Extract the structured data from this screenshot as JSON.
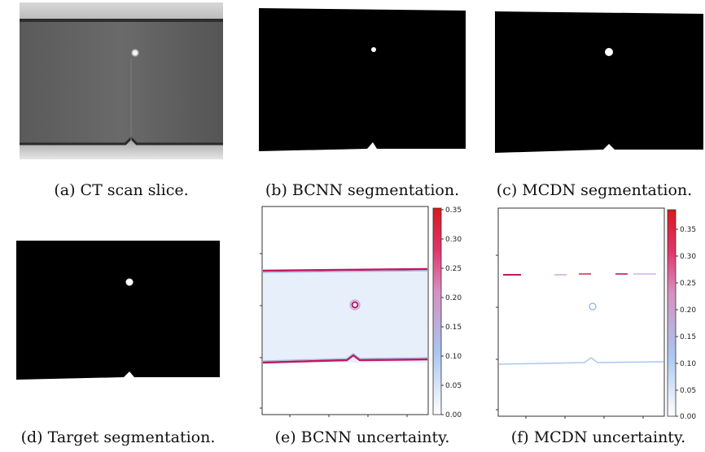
{
  "figure": {
    "panels": [
      {
        "id": "a",
        "caption": "(a) CT scan slice."
      },
      {
        "id": "b",
        "caption": "(b) BCNN segmentation."
      },
      {
        "id": "c",
        "caption": "(c) MCDN segmentation."
      },
      {
        "id": "d",
        "caption": "(d) Target segmentation."
      },
      {
        "id": "e",
        "caption": "(e) BCNN uncertainty."
      },
      {
        "id": "f",
        "caption": "(f) MCDN uncertainty."
      }
    ],
    "colorbar_e_ticks": [
      "0.00",
      "0.05",
      "0.10",
      "0.15",
      "0.20",
      "0.25",
      "0.30",
      "0.35"
    ],
    "colorbar_f_ticks": [
      "0.00",
      "0.05",
      "0.10",
      "0.15",
      "0.20",
      "0.25",
      "0.30",
      "0.35"
    ],
    "colors": {
      "segmentation_bg": "#000000",
      "segmentation_fg": "#ffffff",
      "uncertainty_low": "#ffffff",
      "uncertainty_mid": "#a9c6f0",
      "uncertainty_high": "#d7191c"
    }
  }
}
